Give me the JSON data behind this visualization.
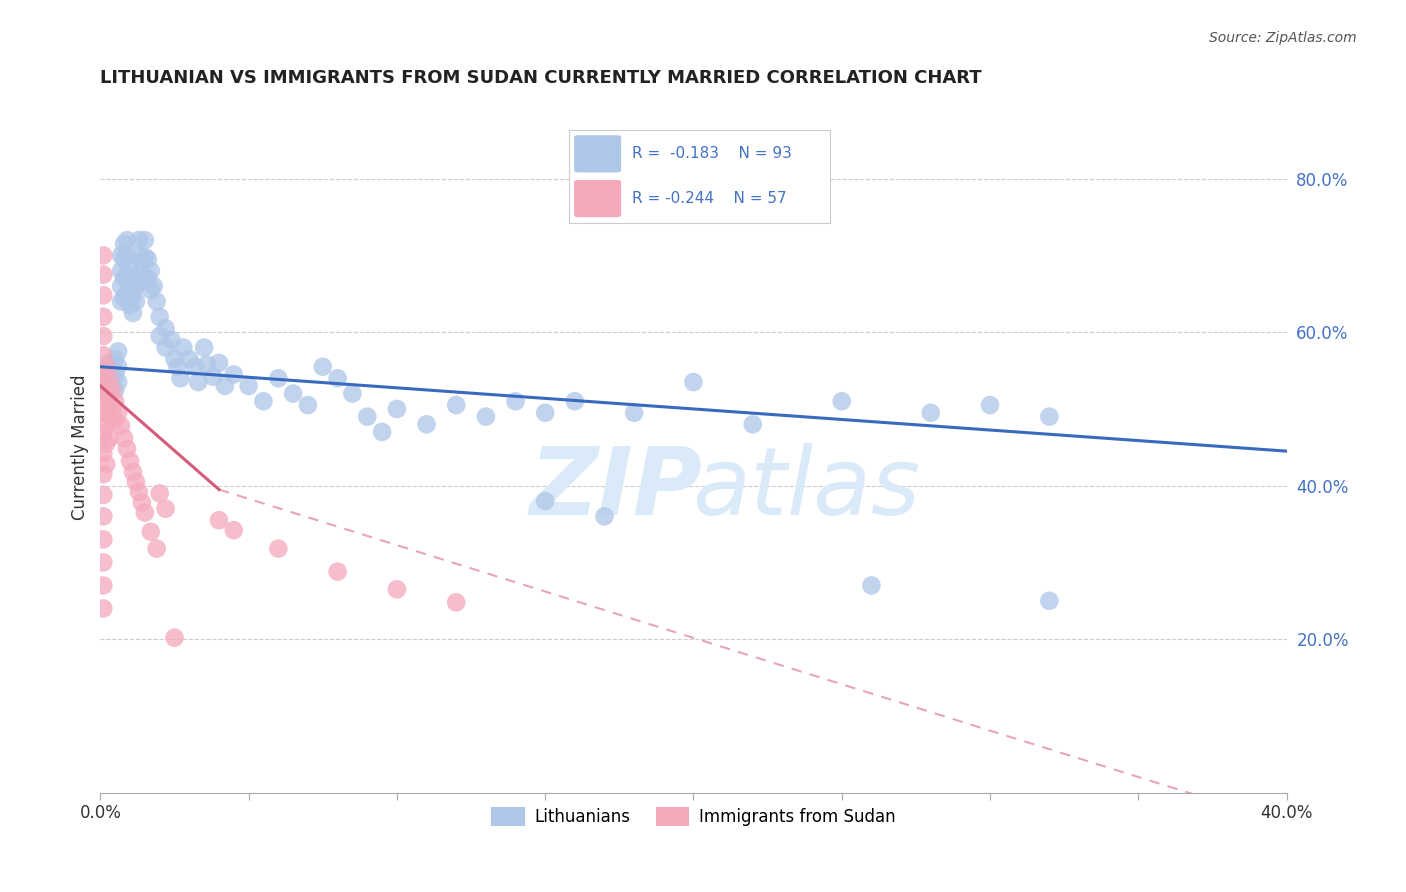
{
  "title": "LITHUANIAN VS IMMIGRANTS FROM SUDAN CURRENTLY MARRIED CORRELATION CHART",
  "source": "Source: ZipAtlas.com",
  "ylabel": "Currently Married",
  "legend_blue_label": "Lithuanians",
  "legend_pink_label": "Immigrants from Sudan",
  "blue_color": "#aec6e8",
  "pink_color": "#f4a9bb",
  "blue_line_color": "#3a6abf",
  "pink_line_color": "#d45c7a",
  "xlim": [
    0.0,
    0.4
  ],
  "ylim": [
    0.0,
    0.9
  ],
  "blue_trend": [
    0.0,
    0.555,
    0.4,
    0.445
  ],
  "pink_trend_solid": [
    0.0,
    0.53,
    0.04,
    0.395
  ],
  "pink_trend_dash": [
    0.04,
    0.395,
    0.4,
    -0.04
  ],
  "blue_scatter": [
    [
      0.002,
      0.545
    ],
    [
      0.002,
      0.525
    ],
    [
      0.003,
      0.56
    ],
    [
      0.003,
      0.54
    ],
    [
      0.004,
      0.555
    ],
    [
      0.004,
      0.535
    ],
    [
      0.005,
      0.565
    ],
    [
      0.005,
      0.545
    ],
    [
      0.005,
      0.525
    ],
    [
      0.006,
      0.575
    ],
    [
      0.006,
      0.555
    ],
    [
      0.006,
      0.535
    ],
    [
      0.007,
      0.7
    ],
    [
      0.007,
      0.68
    ],
    [
      0.007,
      0.66
    ],
    [
      0.007,
      0.64
    ],
    [
      0.008,
      0.715
    ],
    [
      0.008,
      0.695
    ],
    [
      0.008,
      0.67
    ],
    [
      0.008,
      0.645
    ],
    [
      0.009,
      0.72
    ],
    [
      0.009,
      0.7
    ],
    [
      0.009,
      0.675
    ],
    [
      0.009,
      0.65
    ],
    [
      0.01,
      0.685
    ],
    [
      0.01,
      0.66
    ],
    [
      0.01,
      0.635
    ],
    [
      0.011,
      0.67
    ],
    [
      0.011,
      0.648
    ],
    [
      0.011,
      0.625
    ],
    [
      0.012,
      0.66
    ],
    [
      0.012,
      0.64
    ],
    [
      0.013,
      0.72
    ],
    [
      0.013,
      0.7
    ],
    [
      0.013,
      0.675
    ],
    [
      0.014,
      0.69
    ],
    [
      0.014,
      0.665
    ],
    [
      0.015,
      0.72
    ],
    [
      0.015,
      0.698
    ],
    [
      0.015,
      0.67
    ],
    [
      0.016,
      0.695
    ],
    [
      0.016,
      0.67
    ],
    [
      0.017,
      0.68
    ],
    [
      0.017,
      0.655
    ],
    [
      0.018,
      0.66
    ],
    [
      0.019,
      0.64
    ],
    [
      0.02,
      0.62
    ],
    [
      0.02,
      0.595
    ],
    [
      0.022,
      0.605
    ],
    [
      0.022,
      0.58
    ],
    [
      0.024,
      0.59
    ],
    [
      0.025,
      0.565
    ],
    [
      0.026,
      0.555
    ],
    [
      0.027,
      0.54
    ],
    [
      0.028,
      0.58
    ],
    [
      0.03,
      0.565
    ],
    [
      0.032,
      0.555
    ],
    [
      0.033,
      0.535
    ],
    [
      0.035,
      0.58
    ],
    [
      0.036,
      0.558
    ],
    [
      0.038,
      0.542
    ],
    [
      0.04,
      0.56
    ],
    [
      0.042,
      0.53
    ],
    [
      0.045,
      0.545
    ],
    [
      0.05,
      0.53
    ],
    [
      0.055,
      0.51
    ],
    [
      0.06,
      0.54
    ],
    [
      0.065,
      0.52
    ],
    [
      0.07,
      0.505
    ],
    [
      0.075,
      0.555
    ],
    [
      0.08,
      0.54
    ],
    [
      0.085,
      0.52
    ],
    [
      0.09,
      0.49
    ],
    [
      0.095,
      0.47
    ],
    [
      0.1,
      0.5
    ],
    [
      0.11,
      0.48
    ],
    [
      0.12,
      0.505
    ],
    [
      0.13,
      0.49
    ],
    [
      0.14,
      0.51
    ],
    [
      0.15,
      0.495
    ],
    [
      0.16,
      0.51
    ],
    [
      0.18,
      0.495
    ],
    [
      0.2,
      0.535
    ],
    [
      0.22,
      0.48
    ],
    [
      0.25,
      0.51
    ],
    [
      0.28,
      0.495
    ],
    [
      0.3,
      0.505
    ],
    [
      0.32,
      0.49
    ],
    [
      0.15,
      0.38
    ],
    [
      0.17,
      0.36
    ],
    [
      0.26,
      0.27
    ],
    [
      0.32,
      0.25
    ]
  ],
  "pink_scatter": [
    [
      0.001,
      0.7
    ],
    [
      0.001,
      0.675
    ],
    [
      0.001,
      0.648
    ],
    [
      0.001,
      0.62
    ],
    [
      0.001,
      0.595
    ],
    [
      0.001,
      0.57
    ],
    [
      0.001,
      0.545
    ],
    [
      0.001,
      0.52
    ],
    [
      0.001,
      0.495
    ],
    [
      0.001,
      0.468
    ],
    [
      0.001,
      0.442
    ],
    [
      0.001,
      0.415
    ],
    [
      0.001,
      0.388
    ],
    [
      0.001,
      0.36
    ],
    [
      0.001,
      0.33
    ],
    [
      0.001,
      0.3
    ],
    [
      0.001,
      0.27
    ],
    [
      0.001,
      0.24
    ],
    [
      0.002,
      0.555
    ],
    [
      0.002,
      0.53
    ],
    [
      0.002,
      0.505
    ],
    [
      0.002,
      0.48
    ],
    [
      0.002,
      0.455
    ],
    [
      0.002,
      0.428
    ],
    [
      0.003,
      0.54
    ],
    [
      0.003,
      0.515
    ],
    [
      0.003,
      0.49
    ],
    [
      0.003,
      0.462
    ],
    [
      0.004,
      0.525
    ],
    [
      0.004,
      0.5
    ],
    [
      0.005,
      0.51
    ],
    [
      0.005,
      0.485
    ],
    [
      0.006,
      0.495
    ],
    [
      0.007,
      0.478
    ],
    [
      0.008,
      0.462
    ],
    [
      0.009,
      0.448
    ],
    [
      0.01,
      0.432
    ],
    [
      0.011,
      0.418
    ],
    [
      0.012,
      0.405
    ],
    [
      0.013,
      0.392
    ],
    [
      0.014,
      0.378
    ],
    [
      0.015,
      0.365
    ],
    [
      0.017,
      0.34
    ],
    [
      0.019,
      0.318
    ],
    [
      0.02,
      0.39
    ],
    [
      0.022,
      0.37
    ],
    [
      0.025,
      0.202
    ],
    [
      0.04,
      0.355
    ],
    [
      0.045,
      0.342
    ],
    [
      0.06,
      0.318
    ],
    [
      0.08,
      0.288
    ],
    [
      0.1,
      0.265
    ],
    [
      0.12,
      0.248
    ]
  ]
}
